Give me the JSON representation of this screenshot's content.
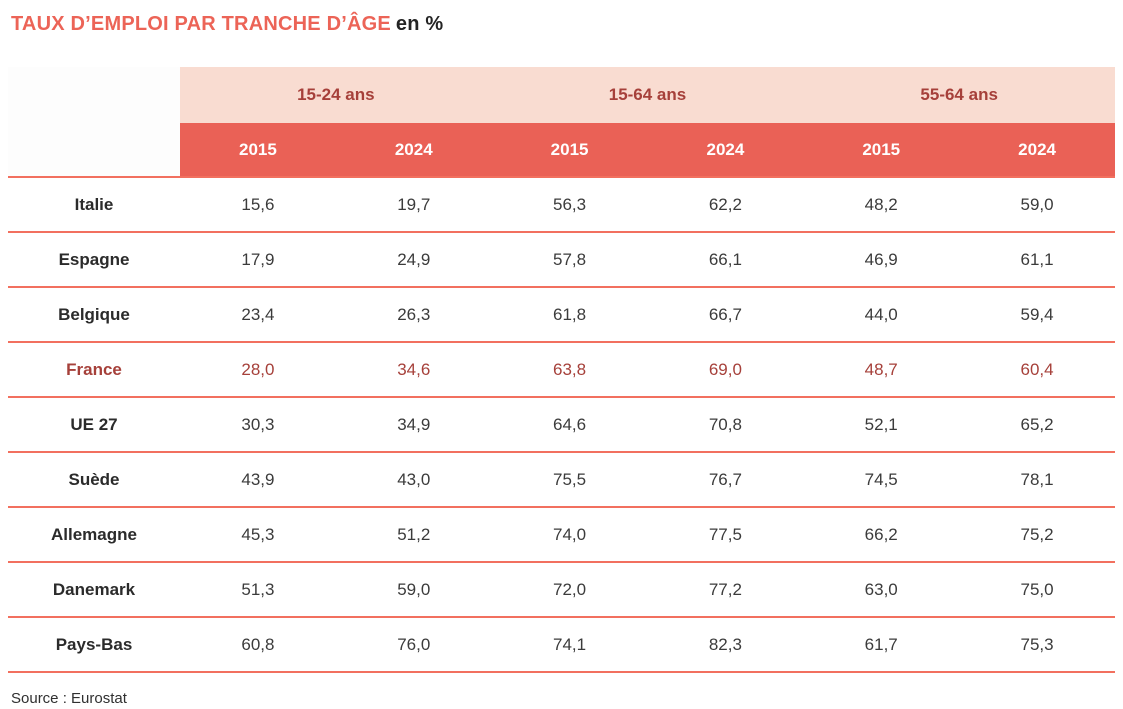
{
  "title": {
    "main": "TAUX D’EMPLOI PAR TRANCHE D’ÂGE",
    "suffix": "en %"
  },
  "colors": {
    "title_coral": "#EC6457",
    "group_band_pink": "#F9DCD1",
    "group_text_dark_red": "#A6403A",
    "year_band_coral": "#EA6156",
    "year_text": "#FFFFFF",
    "separator_coral": "#F2705F",
    "country_text": "#2B2B2B",
    "value_text": "#3B3B3B",
    "highlight_row_text": "#A6403A"
  },
  "table": {
    "age_groups": [
      {
        "label": "15-24 ans"
      },
      {
        "label": "15-64 ans"
      },
      {
        "label": "55-64 ans"
      }
    ],
    "year_headers": [
      "2015",
      "2024",
      "2015",
      "2024",
      "2015",
      "2024"
    ],
    "rows": [
      {
        "country": "Italie",
        "highlight": false,
        "values": [
          "15,6",
          "19,7",
          "56,3",
          "62,2",
          "48,2",
          "59,0"
        ]
      },
      {
        "country": "Espagne",
        "highlight": false,
        "values": [
          "17,9",
          "24,9",
          "57,8",
          "66,1",
          "46,9",
          "61,1"
        ]
      },
      {
        "country": "Belgique",
        "highlight": false,
        "values": [
          "23,4",
          "26,3",
          "61,8",
          "66,7",
          "44,0",
          "59,4"
        ]
      },
      {
        "country": "France",
        "highlight": true,
        "values": [
          "28,0",
          "34,6",
          "63,8",
          "69,0",
          "48,7",
          "60,4"
        ]
      },
      {
        "country": "UE 27",
        "highlight": false,
        "values": [
          "30,3",
          "34,9",
          "64,6",
          "70,8",
          "52,1",
          "65,2"
        ]
      },
      {
        "country": "Suède",
        "highlight": false,
        "values": [
          "43,9",
          "43,0",
          "75,5",
          "76,7",
          "74,5",
          "78,1"
        ]
      },
      {
        "country": "Allemagne",
        "highlight": false,
        "values": [
          "45,3",
          "51,2",
          "74,0",
          "77,5",
          "66,2",
          "75,2"
        ]
      },
      {
        "country": "Danemark",
        "highlight": false,
        "values": [
          "51,3",
          "59,0",
          "72,0",
          "77,2",
          "63,0",
          "75,0"
        ]
      },
      {
        "country": "Pays-Bas",
        "highlight": false,
        "values": [
          "60,8",
          "76,0",
          "74,1",
          "82,3",
          "61,7",
          "75,3"
        ]
      }
    ]
  },
  "source": "Source : Eurostat",
  "chart_data": {
    "type": "table",
    "title": "TAUX D’EMPLOI PAR TRANCHE D’ÂGE en %",
    "unit": "%",
    "column_groups": [
      "15-24 ans",
      "15-64 ans",
      "55-64 ans"
    ],
    "years_per_group": [
      "2015",
      "2024"
    ],
    "rows": [
      {
        "country": "Italie",
        "15-24": {
          "2015": 15.6,
          "2024": 19.7
        },
        "15-64": {
          "2015": 56.3,
          "2024": 62.2
        },
        "55-64": {
          "2015": 48.2,
          "2024": 59.0
        }
      },
      {
        "country": "Espagne",
        "15-24": {
          "2015": 17.9,
          "2024": 24.9
        },
        "15-64": {
          "2015": 57.8,
          "2024": 66.1
        },
        "55-64": {
          "2015": 46.9,
          "2024": 61.1
        }
      },
      {
        "country": "Belgique",
        "15-24": {
          "2015": 23.4,
          "2024": 26.3
        },
        "15-64": {
          "2015": 61.8,
          "2024": 66.7
        },
        "55-64": {
          "2015": 44.0,
          "2024": 59.4
        }
      },
      {
        "country": "France",
        "15-24": {
          "2015": 28.0,
          "2024": 34.6
        },
        "15-64": {
          "2015": 63.8,
          "2024": 69.0
        },
        "55-64": {
          "2015": 48.7,
          "2024": 60.4
        }
      },
      {
        "country": "UE 27",
        "15-24": {
          "2015": 30.3,
          "2024": 34.9
        },
        "15-64": {
          "2015": 64.6,
          "2024": 70.8
        },
        "55-64": {
          "2015": 52.1,
          "2024": 65.2
        }
      },
      {
        "country": "Suède",
        "15-24": {
          "2015": 43.9,
          "2024": 43.0
        },
        "15-64": {
          "2015": 75.5,
          "2024": 76.7
        },
        "55-64": {
          "2015": 74.5,
          "2024": 78.1
        }
      },
      {
        "country": "Allemagne",
        "15-24": {
          "2015": 45.3,
          "2024": 51.2
        },
        "15-64": {
          "2015": 74.0,
          "2024": 77.5
        },
        "55-64": {
          "2015": 66.2,
          "2024": 75.2
        }
      },
      {
        "country": "Danemark",
        "15-24": {
          "2015": 51.3,
          "2024": 59.0
        },
        "15-64": {
          "2015": 72.0,
          "2024": 77.2
        },
        "55-64": {
          "2015": 63.0,
          "2024": 75.0
        }
      },
      {
        "country": "Pays-Bas",
        "15-24": {
          "2015": 60.8,
          "2024": 76.0
        },
        "15-64": {
          "2015": 74.1,
          "2024": 82.3
        },
        "55-64": {
          "2015": 61.7,
          "2024": 75.3
        }
      }
    ],
    "highlighted_row": "France",
    "source": "Eurostat"
  }
}
